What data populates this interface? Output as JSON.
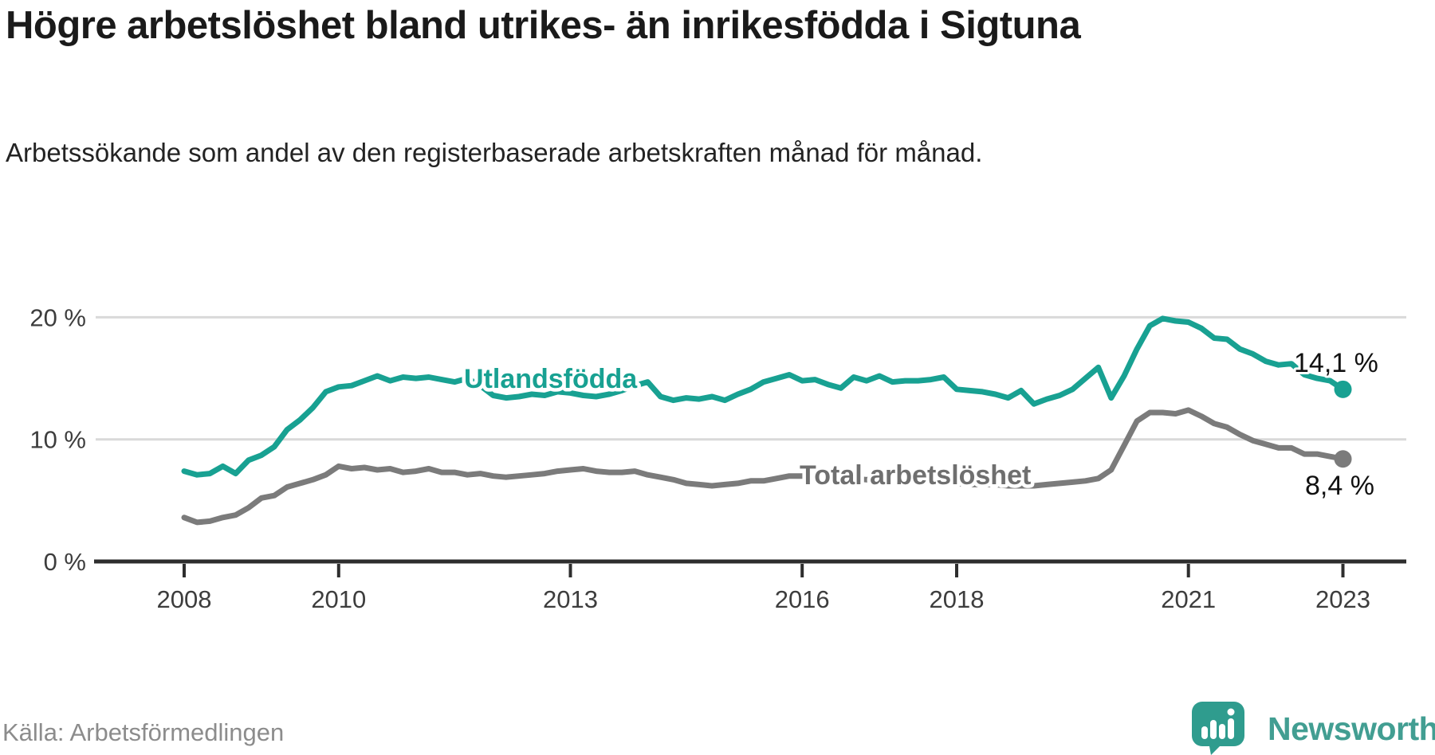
{
  "header": {
    "title": "Högre arbetslöshet bland utrikes- än inrikesfödda i Sigtuna",
    "subtitle": "Arbetssökande som andel av den registerbaserade arbetskraften månad för månad."
  },
  "footer": {
    "source": "Källa: Arbetsförmedlingen",
    "brand_name": "Newsworthy"
  },
  "colors": {
    "series_utlandsfodda": "#18a192",
    "series_total": "#7b7b7b",
    "grid": "#d9d9d9",
    "axis": "#2e2e2e",
    "logo_teal": "#2f9c8e",
    "brand_text": "#429e92"
  },
  "chart_data": {
    "type": "line",
    "title": "Högre arbetslöshet bland utrikes- än inrikesfödda i Sigtuna",
    "xlabel": "",
    "ylabel": "Arbetssökande som andel av den registerbaserade arbetskraften",
    "unit": "%",
    "grid": "horizontal",
    "legend_position": "inline-labels",
    "x_axis": {
      "tick_years": [
        2008,
        2010,
        2013,
        2016,
        2018,
        2021,
        2023
      ]
    },
    "y_axis": {
      "tick_values": [
        0,
        10,
        20
      ],
      "tick_labels": [
        "0 %",
        "10 %",
        "20 %"
      ],
      "range": [
        0,
        21.5
      ]
    },
    "x_start_year": 2008.0,
    "x_step_years": 0.16667,
    "series": [
      {
        "name": "Utlandsfödda",
        "color": "#18a192",
        "end_label": "14,1 %",
        "end_value": 14.1,
        "values": [
          7.4,
          7.1,
          7.2,
          7.8,
          7.2,
          8.3,
          8.7,
          9.4,
          10.8,
          11.6,
          12.6,
          13.9,
          14.3,
          14.4,
          14.8,
          15.2,
          14.8,
          15.1,
          15.0,
          15.1,
          14.9,
          14.7,
          15.0,
          14.4,
          13.6,
          13.4,
          13.5,
          13.7,
          13.6,
          13.9,
          13.8,
          13.6,
          13.5,
          13.7,
          14.0,
          14.4,
          14.7,
          13.5,
          13.2,
          13.4,
          13.3,
          13.5,
          13.2,
          13.7,
          14.1,
          14.7,
          15.0,
          15.3,
          14.8,
          14.9,
          14.5,
          14.2,
          15.1,
          14.8,
          15.2,
          14.7,
          14.8,
          14.8,
          14.9,
          15.1,
          14.1,
          14.0,
          13.9,
          13.7,
          13.4,
          14.0,
          12.9,
          13.3,
          13.6,
          14.1,
          15.0,
          15.9,
          13.4,
          15.2,
          17.4,
          19.3,
          19.9,
          19.7,
          19.6,
          19.1,
          18.3,
          18.2,
          17.4,
          17.0,
          16.4,
          16.1,
          16.2,
          15.3,
          15.0,
          14.8,
          14.1
        ]
      },
      {
        "name": "Total arbetslöshet",
        "color": "#7b7b7b",
        "end_label": "8,4 %",
        "end_value": 8.4,
        "values": [
          3.6,
          3.2,
          3.3,
          3.6,
          3.8,
          4.4,
          5.2,
          5.4,
          6.1,
          6.4,
          6.7,
          7.1,
          7.8,
          7.6,
          7.7,
          7.5,
          7.6,
          7.3,
          7.4,
          7.6,
          7.3,
          7.3,
          7.1,
          7.2,
          7.0,
          6.9,
          7.0,
          7.1,
          7.2,
          7.4,
          7.5,
          7.6,
          7.4,
          7.3,
          7.3,
          7.4,
          7.1,
          6.9,
          6.7,
          6.4,
          6.3,
          6.2,
          6.3,
          6.4,
          6.6,
          6.6,
          6.8,
          7.0,
          7.0,
          6.9,
          6.9,
          6.8,
          6.8,
          6.7,
          6.7,
          6.6,
          6.6,
          6.5,
          6.5,
          6.4,
          6.4,
          6.3,
          6.3,
          6.3,
          6.2,
          6.2,
          6.2,
          6.3,
          6.4,
          6.5,
          6.6,
          6.8,
          7.5,
          9.5,
          11.5,
          12.2,
          12.2,
          12.1,
          12.4,
          11.9,
          11.3,
          11.0,
          10.4,
          9.9,
          9.6,
          9.3,
          9.3,
          8.8,
          8.8,
          8.6,
          8.4
        ]
      }
    ]
  }
}
